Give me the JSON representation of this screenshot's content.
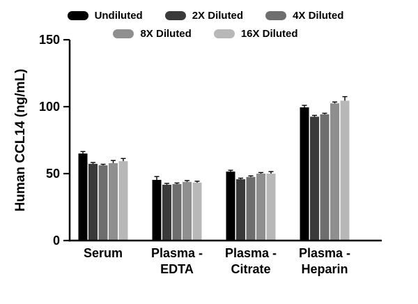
{
  "chart_data": {
    "type": "bar",
    "title": "",
    "xlabel": "",
    "ylabel": "Human CCL14 (ng/mL)",
    "ylim": [
      0,
      150
    ],
    "yticks": [
      0,
      50,
      100,
      150
    ],
    "grid": false,
    "legend_position": "top",
    "categories": [
      "Serum",
      "Plasma - EDTA",
      "Plasma - Citrate",
      "Plasma - Heparin"
    ],
    "categories_lines": [
      [
        "Serum"
      ],
      [
        "Plasma -",
        "EDTA"
      ],
      [
        "Plasma -",
        "Citrate"
      ],
      [
        "Plasma -",
        "Heparin"
      ]
    ],
    "series": [
      {
        "name": "Undiluted",
        "color": "#000000",
        "values": [
          65.0,
          45.3,
          51.5,
          99.5
        ],
        "errors": [
          1.5,
          2.5,
          1.0,
          1.5
        ]
      },
      {
        "name": "2X Diluted",
        "color": "#3a3a3a",
        "values": [
          57.3,
          41.7,
          45.8,
          92.5
        ],
        "errors": [
          1.0,
          1.0,
          0.8,
          1.0
        ]
      },
      {
        "name": "4X Diluted",
        "color": "#6e6e6e",
        "values": [
          56.2,
          42.2,
          47.5,
          94.3
        ],
        "errors": [
          0.8,
          0.8,
          0.8,
          0.8
        ]
      },
      {
        "name": "8X Diluted",
        "color": "#8f8f8f",
        "values": [
          57.8,
          43.8,
          50.0,
          102.5
        ],
        "errors": [
          2.0,
          1.0,
          0.8,
          1.0
        ]
      },
      {
        "name": "16X Diluted",
        "color": "#b8b8b8",
        "values": [
          59.3,
          43.3,
          50.0,
          104.5
        ],
        "errors": [
          2.0,
          1.0,
          1.5,
          3.0
        ]
      }
    ]
  }
}
